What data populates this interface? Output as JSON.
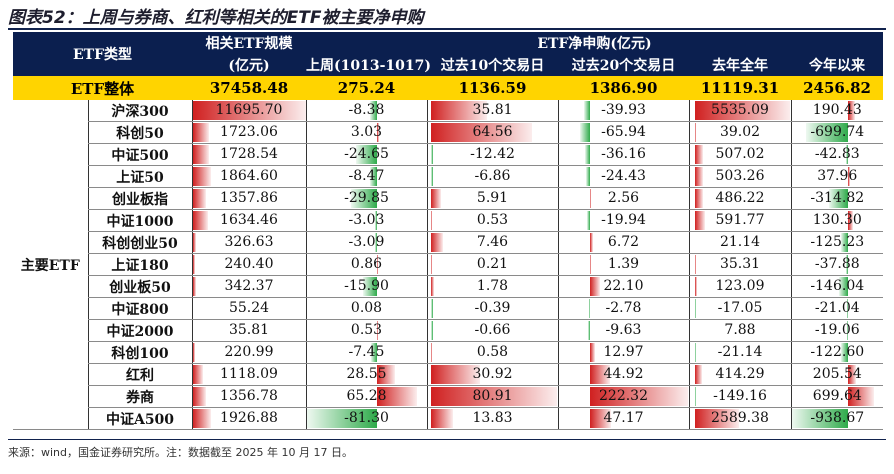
{
  "title": "图表52：上周与券商、红利等相关的ETF被主要净申购",
  "header": {
    "etf_type": "ETF类型",
    "size_line1": "相关ETF规模",
    "size_line2": "(亿元)",
    "net": "ETF净申购(亿元)",
    "cols": [
      "上周(1013-1017)",
      "过去10个交易日",
      "过去20个交易日",
      "去年全年",
      "今年以来"
    ]
  },
  "total": {
    "label": "ETF整体",
    "values": [
      "37458.48",
      "275.24",
      "1136.59",
      "1386.90",
      "11119.31",
      "2456.82"
    ]
  },
  "group_label": "主要ETF",
  "rows": [
    {
      "name": "沪深300",
      "values": [
        "11695.70",
        "-8.38",
        "35.81",
        "-39.93",
        "5535.09",
        "190.43"
      ]
    },
    {
      "name": "科创50",
      "values": [
        "1723.06",
        "3.03",
        "64.56",
        "-65.94",
        "39.02",
        "-699.74"
      ]
    },
    {
      "name": "中证500",
      "values": [
        "1728.54",
        "-24.65",
        "-12.42",
        "-36.16",
        "507.02",
        "-42.83"
      ]
    },
    {
      "name": "上证50",
      "values": [
        "1864.60",
        "-8.47",
        "-6.86",
        "-24.43",
        "503.26",
        "37.96"
      ]
    },
    {
      "name": "创业板指",
      "values": [
        "1357.86",
        "-29.85",
        "5.91",
        "2.56",
        "486.22",
        "-314.82"
      ]
    },
    {
      "name": "中证1000",
      "values": [
        "1634.46",
        "-3.03",
        "0.53",
        "-19.94",
        "591.77",
        "130.30"
      ]
    },
    {
      "name": "科创创业50",
      "values": [
        "326.63",
        "-3.09",
        "7.46",
        "6.72",
        "21.14",
        "-125.23"
      ]
    },
    {
      "name": "上证180",
      "values": [
        "240.40",
        "0.86",
        "0.21",
        "1.39",
        "35.31",
        "-37.88"
      ]
    },
    {
      "name": "创业板50",
      "values": [
        "342.37",
        "-15.90",
        "1.78",
        "22.10",
        "123.09",
        "-146.04"
      ]
    },
    {
      "name": "中证800",
      "values": [
        "55.24",
        "0.08",
        "-0.39",
        "-2.78",
        "-17.05",
        "-21.04"
      ]
    },
    {
      "name": "中证2000",
      "values": [
        "35.81",
        "0.53",
        "-0.66",
        "-9.63",
        "7.88",
        "-19.06"
      ]
    },
    {
      "name": "科创100",
      "values": [
        "220.99",
        "-7.45",
        "0.58",
        "12.97",
        "-21.14",
        "-122.60"
      ]
    },
    {
      "name": "红利",
      "values": [
        "1118.09",
        "28.55",
        "30.92",
        "44.92",
        "414.29",
        "205.54"
      ]
    },
    {
      "name": "券商",
      "values": [
        "1356.78",
        "65.28",
        "80.91",
        "222.32",
        "-149.16",
        "699.64"
      ]
    },
    {
      "name": "中证A500",
      "values": [
        "1926.88",
        "-81.30",
        "13.83",
        "47.17",
        "2589.38",
        "-938.67"
      ]
    }
  ],
  "footer": "来源：wind，国金证券研究所。注：数据截至 2025 年 10 月 17 日。",
  "colors": {
    "header_bg": "#0b1f4f",
    "total_bg": "#ffd400",
    "positive_bar": "#d02020",
    "negative_bar": "#2eaa4a"
  }
}
